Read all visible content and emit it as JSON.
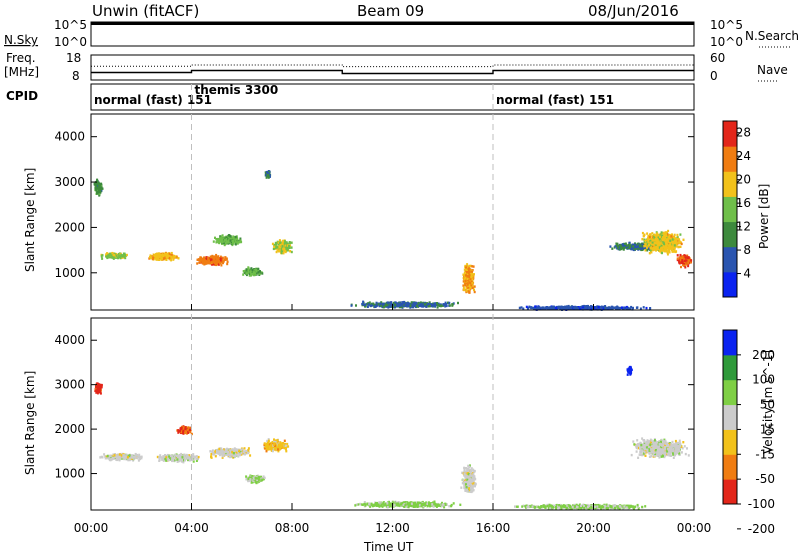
{
  "header": {
    "title": "Unwin (fitACF)",
    "beam": "Beam 09",
    "date": "08/Jun/2016"
  },
  "chart_data": [
    {
      "type": "line",
      "panel": "sky-noise",
      "ylabel": "N.Sky",
      "y_ticks_left": [
        "10^5",
        "10^0"
      ],
      "y_ticks_right": [
        "10^5",
        "10^0"
      ],
      "right_label": "N.Search",
      "value": "near maximum (~10^5) across 00:00-24:00"
    },
    {
      "type": "line",
      "panel": "frequency-nave",
      "ylabel": "Freq. [MHz]",
      "y_ticks_left": [
        "18",
        "8"
      ],
      "y_ticks_right": [
        "60",
        "0"
      ],
      "right_label": "Nave",
      "freq_segments": [
        {
          "start_h": 0,
          "end_h": 4,
          "mhz": 11.0
        },
        {
          "start_h": 4,
          "end_h": 10,
          "mhz": 11.8
        },
        {
          "start_h": 10,
          "end_h": 16,
          "mhz": 10.6
        },
        {
          "start_h": 16,
          "end_h": 24,
          "mhz": 11.8
        }
      ],
      "nave_segments": [
        {
          "start_h": 0,
          "end_h": 4,
          "value": 33
        },
        {
          "start_h": 4,
          "end_h": 10,
          "value": 36
        },
        {
          "start_h": 10,
          "end_h": 16,
          "value": 32
        },
        {
          "start_h": 16,
          "end_h": 24,
          "value": 36
        }
      ]
    },
    {
      "type": "table",
      "panel": "cpid",
      "label": "CPID",
      "modes": [
        {
          "start_h": 0,
          "text": "normal (fast) 151"
        },
        {
          "start_h": 4,
          "text": "themis 3300"
        },
        {
          "start_h": 16,
          "text": "normal (fast) 151"
        }
      ]
    },
    {
      "type": "heatmap",
      "panel": "power",
      "ylabel": "Slant Range [km]",
      "ylim": [
        180,
        4500
      ],
      "y_ticks": [
        1000,
        2000,
        3000,
        4000
      ],
      "xlim": [
        0,
        24
      ],
      "colorbar_label": "Power [dB]",
      "colorbar_ticks": [
        4,
        8,
        12,
        16,
        20,
        24,
        28
      ],
      "colorbar_range": [
        0,
        30
      ],
      "colors": [
        "#0a23f0",
        "#2a55b0",
        "#3d8a3d",
        "#6fbf4a",
        "#f2c21b",
        "#f07d12",
        "#e3261a"
      ],
      "regions": [
        {
          "t": 0.9,
          "r": 1400,
          "dt": 0.75,
          "dr": 90,
          "val": 16
        },
        {
          "t": 2.8,
          "r": 1380,
          "dt": 0.9,
          "dr": 120,
          "val": 20
        },
        {
          "t": 4.8,
          "r": 1300,
          "dt": 0.9,
          "dr": 160,
          "val": 24
        },
        {
          "t": 5.4,
          "r": 1750,
          "dt": 0.8,
          "dr": 160,
          "val": 14
        },
        {
          "t": 6.4,
          "r": 1050,
          "dt": 0.6,
          "dr": 130,
          "val": 13
        },
        {
          "t": 7.6,
          "r": 1600,
          "dt": 0.55,
          "dr": 220,
          "val": 17
        },
        {
          "t": 0.25,
          "r": 2900,
          "dt": 0.25,
          "dr": 250,
          "val": 11
        },
        {
          "t": 7.0,
          "r": 3200,
          "dt": 0.15,
          "dr": 130,
          "val": 9
        },
        {
          "t": 15.0,
          "r": 900,
          "dt": 0.35,
          "dr": 500,
          "val": 22
        },
        {
          "t": 12.5,
          "r": 320,
          "dt": 3.0,
          "dr": 90,
          "val": 8
        },
        {
          "t": 19.5,
          "r": 250,
          "dt": 4.0,
          "dr": 60,
          "val": 6
        },
        {
          "t": 21.8,
          "r": 1600,
          "dt": 1.6,
          "dr": 120,
          "val": 9
        },
        {
          "t": 22.7,
          "r": 1700,
          "dt": 1.2,
          "dr": 350,
          "val": 19
        },
        {
          "t": 23.6,
          "r": 1300,
          "dt": 0.45,
          "dr": 200,
          "val": 26
        }
      ]
    },
    {
      "type": "heatmap",
      "panel": "velocity",
      "ylabel": "Slant Range [km]",
      "ylim": [
        180,
        4500
      ],
      "y_ticks": [
        1000,
        2000,
        3000,
        4000
      ],
      "xlim": [
        0,
        24
      ],
      "colorbar_label": "Velocity [m s^-1]",
      "colorbar_ticks": [
        200,
        100,
        50,
        15,
        -15,
        -50,
        -100,
        -200
      ],
      "colorbar_range": [
        -250,
        250
      ],
      "colors": [
        "#e3261a",
        "#f07d12",
        "#f2c21b",
        "#cccccc",
        "#7fcf45",
        "#2f9a3a",
        "#0a23f0"
      ],
      "regions": [
        {
          "t": 1.2,
          "r": 1400,
          "dt": 1.2,
          "dr": 110,
          "val": 0
        },
        {
          "t": 3.4,
          "r": 1380,
          "dt": 1.2,
          "dr": 130,
          "val": 5
        },
        {
          "t": 5.5,
          "r": 1500,
          "dt": 1.2,
          "dr": 160,
          "val": -5
        },
        {
          "t": 0.25,
          "r": 2950,
          "dt": 0.25,
          "dr": 200,
          "val": -220
        },
        {
          "t": 7.3,
          "r": 1650,
          "dt": 0.8,
          "dr": 200,
          "val": -70
        },
        {
          "t": 6.5,
          "r": 900,
          "dt": 0.6,
          "dr": 120,
          "val": 40
        },
        {
          "t": 3.7,
          "r": 2000,
          "dt": 0.4,
          "dr": 150,
          "val": -180
        },
        {
          "t": 15.0,
          "r": 900,
          "dt": 0.4,
          "dr": 450,
          "val": 0
        },
        {
          "t": 12.5,
          "r": 330,
          "dt": 3.0,
          "dr": 90,
          "val": 60
        },
        {
          "t": 19.5,
          "r": 280,
          "dt": 4.0,
          "dr": 70,
          "val": 50
        },
        {
          "t": 22.6,
          "r": 1600,
          "dt": 1.5,
          "dr": 300,
          "val": 0
        },
        {
          "t": 21.4,
          "r": 3350,
          "dt": 0.15,
          "dr": 150,
          "val": 240
        }
      ]
    }
  ],
  "x_ticks": [
    "00:00",
    "04:00",
    "08:00",
    "12:00",
    "16:00",
    "20:00",
    "00:00"
  ],
  "xlabel": "Time UT"
}
